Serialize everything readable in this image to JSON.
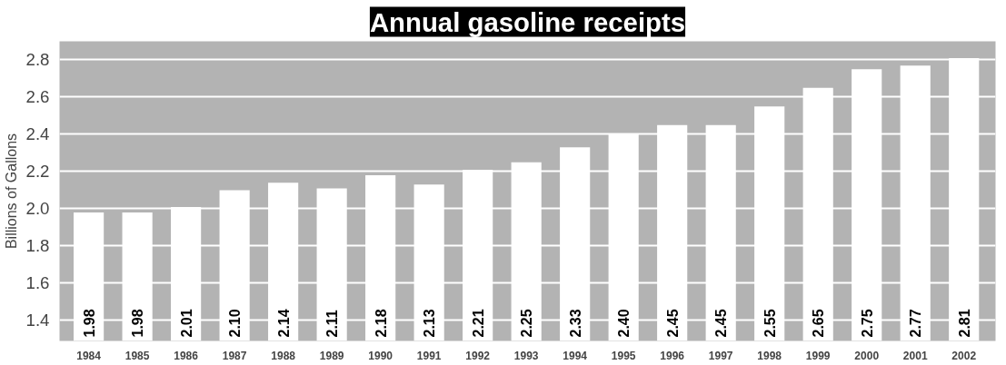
{
  "chart_data": {
    "type": "bar",
    "title": "Annual gasoline receipts",
    "ylabel": "Billions of Gallons",
    "categories": [
      "1984",
      "1985",
      "1986",
      "1987",
      "1988",
      "1989",
      "1990",
      "1991",
      "1992",
      "1993",
      "1994",
      "1995",
      "1996",
      "1997",
      "1998",
      "1999",
      "2000",
      "2001",
      "2002"
    ],
    "values": [
      1.98,
      1.98,
      2.01,
      2.1,
      2.14,
      2.11,
      2.18,
      2.13,
      2.21,
      2.25,
      2.33,
      2.4,
      2.45,
      2.45,
      2.55,
      2.65,
      2.75,
      2.77,
      2.81
    ],
    "value_labels": [
      "1.98",
      "1.98",
      "2.01",
      "2.10",
      "2.14",
      "2.11",
      "2.18",
      "2.13",
      "2.21",
      "2.25",
      "2.33",
      "2.40",
      "2.45",
      "2.45",
      "2.55",
      "2.65",
      "2.75",
      "2.77",
      "2.81"
    ],
    "color": "#ffffff",
    "ylim": [
      1.29,
      2.9
    ],
    "yticks": [
      {
        "value": 1.4,
        "label": "1.4"
      },
      {
        "value": 1.6,
        "label": "1.6"
      },
      {
        "value": 1.8,
        "label": "1.8"
      },
      {
        "value": 2.0,
        "label": "2.0"
      },
      {
        "value": 2.2,
        "label": "2.2"
      },
      {
        "value": 2.4,
        "label": "2.4"
      },
      {
        "value": 2.6,
        "label": "2.6"
      },
      {
        "value": 2.8,
        "label": "2.8"
      }
    ],
    "grid": "y"
  }
}
